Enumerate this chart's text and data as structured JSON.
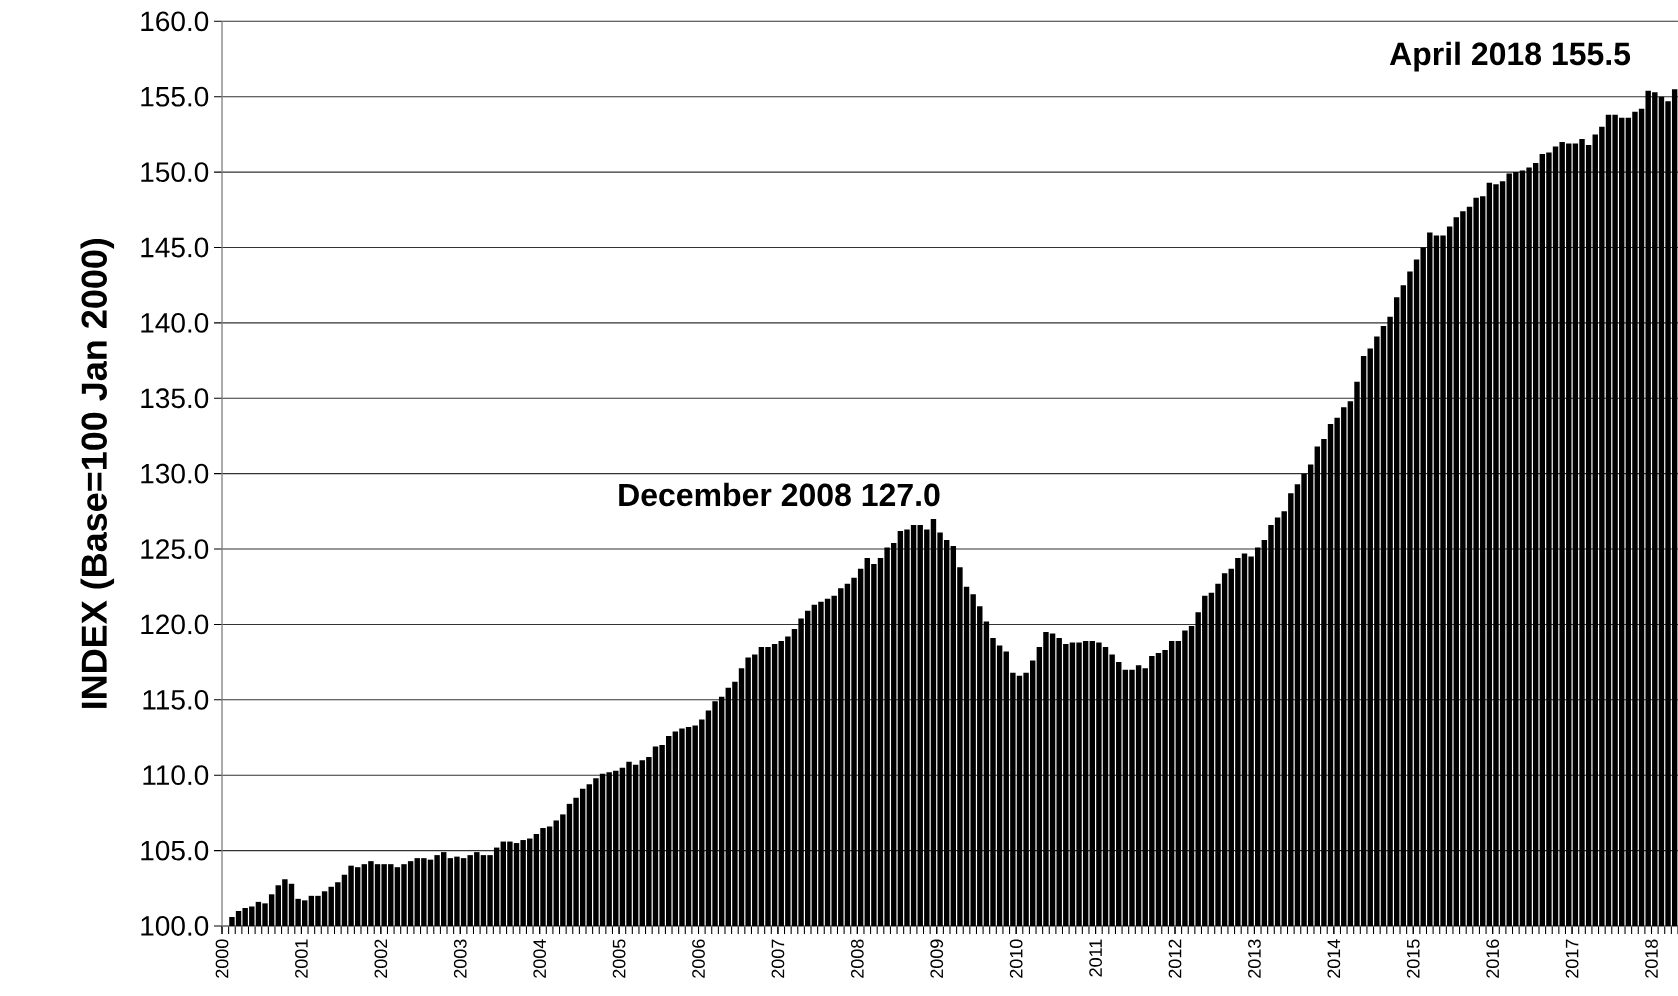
{
  "chart_data": {
    "type": "bar",
    "ylabel": "INDEX (Base=100 Jan 2000)",
    "color": "#000000",
    "grid": "y",
    "ylim": [
      100,
      160
    ],
    "yticks": [
      {
        "value": 100,
        "label": "100.0"
      },
      {
        "value": 105,
        "label": "105.0"
      },
      {
        "value": 110,
        "label": "110.0"
      },
      {
        "value": 115,
        "label": "115.0"
      },
      {
        "value": 120,
        "label": "120.0"
      },
      {
        "value": 125,
        "label": "125.0"
      },
      {
        "value": 130,
        "label": "130.0"
      },
      {
        "value": 135,
        "label": "135.0"
      },
      {
        "value": 140,
        "label": "140.0"
      },
      {
        "value": 145,
        "label": "145.0"
      },
      {
        "value": 150,
        "label": "150.0"
      },
      {
        "value": 155,
        "label": "155.0"
      },
      {
        "value": 160,
        "label": "160.0"
      }
    ],
    "categories": [
      "2000",
      null,
      null,
      null,
      null,
      null,
      null,
      null,
      null,
      null,
      null,
      null,
      "2001",
      null,
      null,
      null,
      null,
      null,
      null,
      null,
      null,
      null,
      null,
      null,
      "2002",
      null,
      null,
      null,
      null,
      null,
      null,
      null,
      null,
      null,
      null,
      null,
      "2003",
      null,
      null,
      null,
      null,
      null,
      null,
      null,
      null,
      null,
      null,
      null,
      "2004",
      null,
      null,
      null,
      null,
      null,
      null,
      null,
      null,
      null,
      null,
      null,
      "2005",
      null,
      null,
      null,
      null,
      null,
      null,
      null,
      null,
      null,
      null,
      null,
      "2006",
      null,
      null,
      null,
      null,
      null,
      null,
      null,
      null,
      null,
      null,
      null,
      "2007",
      null,
      null,
      null,
      null,
      null,
      null,
      null,
      null,
      null,
      null,
      null,
      "2008",
      null,
      null,
      null,
      null,
      null,
      null,
      null,
      null,
      null,
      null,
      null,
      "2009",
      null,
      null,
      null,
      null,
      null,
      null,
      null,
      null,
      null,
      null,
      null,
      "2010",
      null,
      null,
      null,
      null,
      null,
      null,
      null,
      null,
      null,
      null,
      null,
      "2011",
      null,
      null,
      null,
      null,
      null,
      null,
      null,
      null,
      null,
      null,
      null,
      "2012",
      null,
      null,
      null,
      null,
      null,
      null,
      null,
      null,
      null,
      null,
      null,
      "2013",
      null,
      null,
      null,
      null,
      null,
      null,
      null,
      null,
      null,
      null,
      null,
      "2014",
      null,
      null,
      null,
      null,
      null,
      null,
      null,
      null,
      null,
      null,
      null,
      "2015",
      null,
      null,
      null,
      null,
      null,
      null,
      null,
      null,
      null,
      null,
      null,
      "2016",
      null,
      null,
      null,
      null,
      null,
      null,
      null,
      null,
      null,
      null,
      null,
      "2017",
      null,
      null,
      null,
      null,
      null,
      null,
      null,
      null,
      null,
      null,
      null,
      "2018",
      null,
      null,
      null
    ],
    "values": [
      100.0,
      100.6,
      101.0,
      101.2,
      101.3,
      101.6,
      101.5,
      102.1,
      102.7,
      103.1,
      102.8,
      101.8,
      101.7,
      102.0,
      102.0,
      102.3,
      102.6,
      102.9,
      103.4,
      104.0,
      103.9,
      104.1,
      104.3,
      104.1,
      104.1,
      104.1,
      103.9,
      104.1,
      104.3,
      104.5,
      104.5,
      104.4,
      104.7,
      104.9,
      104.5,
      104.6,
      104.5,
      104.7,
      104.9,
      104.7,
      104.7,
      105.2,
      105.6,
      105.6,
      105.5,
      105.7,
      105.8,
      106.1,
      106.5,
      106.6,
      107.0,
      107.4,
      108.1,
      108.5,
      109.1,
      109.4,
      109.8,
      110.1,
      110.2,
      110.3,
      110.5,
      110.9,
      110.7,
      111.0,
      111.2,
      111.9,
      112.0,
      112.6,
      112.9,
      113.1,
      113.2,
      113.3,
      113.7,
      114.3,
      114.9,
      115.2,
      115.8,
      116.2,
      117.1,
      117.8,
      118.0,
      118.5,
      118.5,
      118.7,
      118.9,
      119.2,
      119.7,
      120.4,
      120.9,
      121.3,
      121.5,
      121.7,
      121.9,
      122.4,
      122.7,
      123.1,
      123.7,
      124.4,
      124.0,
      124.4,
      125.1,
      125.4,
      126.2,
      126.3,
      126.6,
      126.6,
      126.3,
      127.0,
      126.1,
      125.6,
      125.2,
      123.8,
      122.5,
      122.0,
      121.2,
      120.2,
      119.1,
      118.6,
      118.2,
      116.8,
      116.6,
      116.8,
      117.6,
      118.5,
      119.5,
      119.4,
      119.1,
      118.7,
      118.8,
      118.8,
      118.9,
      118.9,
      118.8,
      118.5,
      118.0,
      117.5,
      117.0,
      117.0,
      117.3,
      117.1,
      117.9,
      118.1,
      118.3,
      118.9,
      118.9,
      119.6,
      119.9,
      120.8,
      121.9,
      122.1,
      122.7,
      123.4,
      123.7,
      124.4,
      124.7,
      124.5,
      125.1,
      125.6,
      126.6,
      127.1,
      127.5,
      128.7,
      129.3,
      130.0,
      130.6,
      131.8,
      132.3,
      133.3,
      133.7,
      134.4,
      134.8,
      136.1,
      137.8,
      138.3,
      139.1,
      139.8,
      140.4,
      141.7,
      142.5,
      143.4,
      144.2,
      145.0,
      146.0,
      145.8,
      145.8,
      146.4,
      147.0,
      147.4,
      147.7,
      148.3,
      148.4,
      149.3,
      149.2,
      149.4,
      149.9,
      150.0,
      150.1,
      150.3,
      150.6,
      151.2,
      151.3,
      151.7,
      152.0,
      151.9,
      151.9,
      152.2,
      151.8,
      152.5,
      153.0,
      153.8,
      153.8,
      153.6,
      153.6,
      154.0,
      154.2,
      155.4,
      155.3,
      155.0,
      154.7,
      155.5
    ],
    "annotations": [
      "December 2008   127.0",
      "April 2018   155.5"
    ]
  }
}
